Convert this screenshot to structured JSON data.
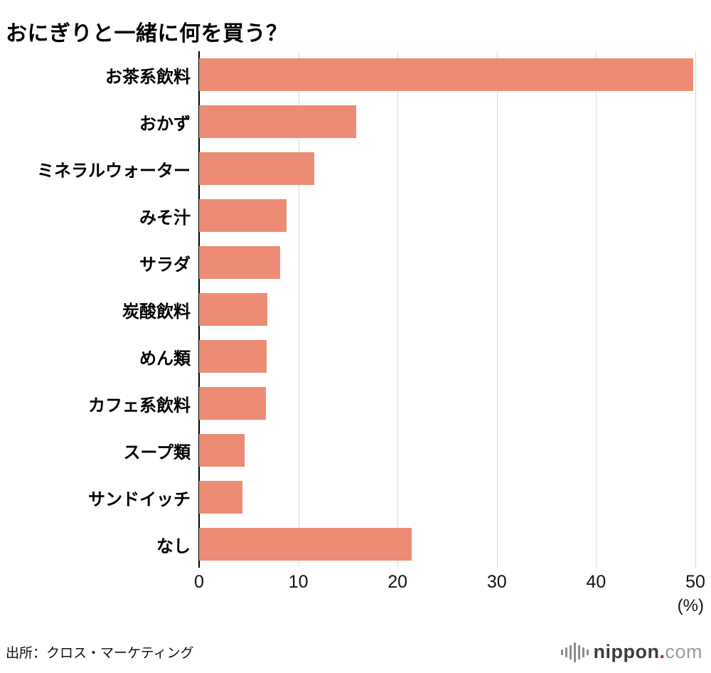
{
  "title": "おにぎりと一緒に何を買う？",
  "chart_data": {
    "type": "bar",
    "orientation": "horizontal",
    "title": "おにぎりと一緒に何を買う？",
    "categories": [
      "お茶系飲料",
      "おかず",
      "ミネラルウォーター",
      "みそ汁",
      "サラダ",
      "炭酸飲料",
      "めん類",
      "カフェ系飲料",
      "スープ類",
      "サンドイッチ",
      "なし"
    ],
    "values": [
      49.8,
      15.8,
      11.6,
      8.8,
      8.2,
      6.9,
      6.8,
      6.7,
      4.6,
      4.4,
      21.4
    ],
    "xlim": [
      0,
      50
    ],
    "ticks": [
      0,
      10,
      20,
      30,
      40,
      50
    ],
    "unit": "(%)",
    "xlabel": "(%)",
    "ylabel": "",
    "grid": true,
    "legend": "none",
    "bar_color": "#EC8C74",
    "gridline_color": "#d9d9d9",
    "axis_color": "#000000"
  },
  "source": "出所：クロス・マーケティング",
  "logo": {
    "name": "nippon",
    "dot": ".",
    "tld": "com"
  }
}
